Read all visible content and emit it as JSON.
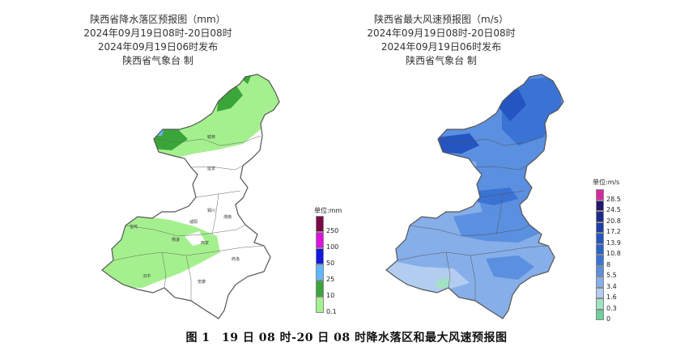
{
  "left_map": {
    "title": "陕西省降水落区预报图（mm）",
    "period": "2024年09月19日08时-20日08时",
    "issued": "2024年09月19日06时发布",
    "issuer": "陕西省气象台 制",
    "legend": {
      "unit": "单位:mm",
      "levels": [
        {
          "label": "250",
          "color": "#7b0a4a"
        },
        {
          "label": "100",
          "color": "#e010e0"
        },
        {
          "label": "50",
          "color": "#1515e6"
        },
        {
          "label": "25",
          "color": "#61b8ff"
        },
        {
          "label": "10",
          "color": "#3aa63a"
        },
        {
          "label": "0.1",
          "color": "#a5f08e"
        }
      ]
    }
  },
  "right_map": {
    "title": "陕西省最大风速预报图（m/s）",
    "period": "2024年09月19日08时-20日08时",
    "issued": "2024年09月19日06时发布",
    "issuer": "陕西省气象台 制",
    "legend": {
      "unit": "单位:m/s",
      "levels": [
        {
          "label": "28.5",
          "color": "#d6299f"
        },
        {
          "label": "24.5",
          "color": "#26156e"
        },
        {
          "label": "20.8",
          "color": "#1c2a8a"
        },
        {
          "label": "17.2",
          "color": "#1d3fa6"
        },
        {
          "label": "13.9",
          "color": "#2455c0"
        },
        {
          "label": "10.8",
          "color": "#2b63c9"
        },
        {
          "label": "8",
          "color": "#3a73d4"
        },
        {
          "label": "5.5",
          "color": "#5b8fe0"
        },
        {
          "label": "3.4",
          "color": "#86aee9"
        },
        {
          "label": "1.6",
          "color": "#b3cdf1"
        },
        {
          "label": "0.3",
          "color": "#9fe3c2"
        },
        {
          "label": "0",
          "color": "#6fd09c"
        }
      ]
    }
  },
  "caption": "图 1　19 日 08 时-20 日 08 时降水落区和最大风速预报图"
}
